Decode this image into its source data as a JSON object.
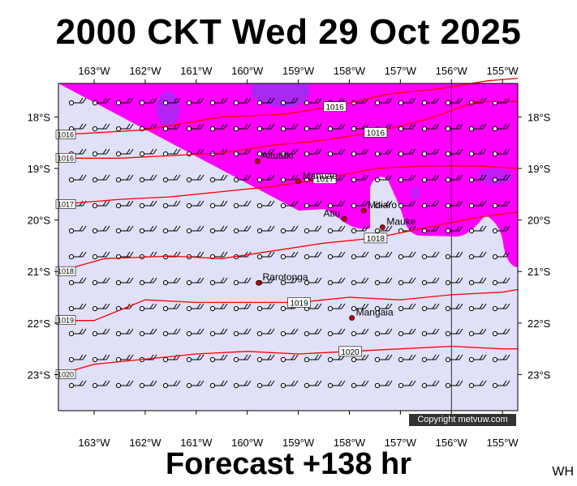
{
  "title": "2000 CKT Wed 29 Oct 2025",
  "footer": "Forecast +138 hr",
  "initials": "WH",
  "copyright": "Copyright metvuw.com",
  "map": {
    "lon_labels": [
      "163°W",
      "162°W",
      "161°W",
      "160°W",
      "159°W",
      "158°W",
      "157°W",
      "156°W",
      "155°W"
    ],
    "lon_values": [
      -163,
      -162,
      -161,
      -160,
      -159,
      -158,
      -157,
      -156,
      -155
    ],
    "lat_labels": [
      "18°S",
      "19°S",
      "20°S",
      "21°S",
      "22°S",
      "23°S"
    ],
    "lat_values": [
      -18,
      -19,
      -20,
      -21,
      -22,
      -23
    ],
    "lon_range": [
      -163.7,
      -154.7
    ],
    "lat_range": [
      -17.35,
      -23.7
    ],
    "colors": {
      "ocean_calm": "#e0e0f8",
      "wind_zone": "#ff00ff",
      "wind_zone_strong": "#9b30f0",
      "isobar": "#ff0000",
      "place_marker": "#cc0000"
    },
    "isobars": [
      {
        "label": "1016",
        "points": [
          [
            -163.7,
            -18.35
          ],
          [
            -162.0,
            -18.25
          ],
          [
            -160.5,
            -18.0
          ],
          [
            -159.3,
            -17.95
          ],
          [
            -158.3,
            -17.8
          ],
          [
            -157.2,
            -17.55
          ],
          [
            -156.2,
            -17.45
          ],
          [
            -155.3,
            -17.3
          ],
          [
            -154.7,
            -17.25
          ]
        ]
      },
      {
        "label": "1016",
        "points": [
          [
            -163.7,
            -18.8
          ],
          [
            -162.5,
            -18.8
          ],
          [
            -161.5,
            -18.75
          ],
          [
            -160.5,
            -18.7
          ],
          [
            -159.5,
            -18.55
          ],
          [
            -158.5,
            -18.45
          ],
          [
            -157.5,
            -18.3
          ],
          [
            -156.5,
            -18.05
          ],
          [
            -155.5,
            -17.7
          ],
          [
            -154.7,
            -17.7
          ]
        ]
      },
      {
        "label": "1017",
        "points": [
          [
            -163.7,
            -19.7
          ],
          [
            -162.5,
            -19.6
          ],
          [
            -161.5,
            -19.55
          ],
          [
            -160.5,
            -19.45
          ],
          [
            -159.5,
            -19.35
          ],
          [
            -158.5,
            -19.2
          ],
          [
            -157.5,
            -19.0
          ],
          [
            -156.5,
            -18.95
          ],
          [
            -155.5,
            -18.95
          ],
          [
            -154.7,
            -19.0
          ]
        ]
      },
      {
        "label": "1018",
        "points": [
          [
            -163.7,
            -21.0
          ],
          [
            -162.8,
            -20.75
          ],
          [
            -161.5,
            -20.7
          ],
          [
            -160.5,
            -20.75
          ],
          [
            -159.5,
            -20.6
          ],
          [
            -158.5,
            -20.45
          ],
          [
            -157.5,
            -20.35
          ],
          [
            -156.5,
            -20.15
          ],
          [
            -155.5,
            -19.95
          ],
          [
            -154.7,
            -19.85
          ]
        ]
      },
      {
        "label": "1019",
        "points": [
          [
            -163.7,
            -21.95
          ],
          [
            -163.0,
            -21.95
          ],
          [
            -162.0,
            -21.55
          ],
          [
            -161.0,
            -21.6
          ],
          [
            -160.0,
            -21.6
          ],
          [
            -159.0,
            -21.6
          ],
          [
            -158.0,
            -21.5
          ],
          [
            -157.0,
            -21.55
          ],
          [
            -156.0,
            -21.45
          ],
          [
            -155.0,
            -21.4
          ],
          [
            -154.7,
            -21.35
          ]
        ]
      },
      {
        "label": "1020",
        "points": [
          [
            -163.7,
            -23.0
          ],
          [
            -163.0,
            -22.8
          ],
          [
            -162.0,
            -22.7
          ],
          [
            -161.0,
            -22.6
          ],
          [
            -160.0,
            -22.55
          ],
          [
            -159.0,
            -22.6
          ],
          [
            -158.0,
            -22.55
          ],
          [
            -157.0,
            -22.5
          ],
          [
            -156.0,
            -22.45
          ],
          [
            -155.0,
            -22.5
          ],
          [
            -154.7,
            -22.5
          ]
        ]
      }
    ],
    "places": [
      {
        "name": "Aitutaki",
        "lon": -159.8,
        "lat": -18.86
      },
      {
        "name": "Manuae",
        "lon": -159.0,
        "lat": -19.25
      },
      {
        "name": "Atiu",
        "lon": -158.1,
        "lat": -19.98
      },
      {
        "name": "Mitiaro",
        "lon": -157.72,
        "lat": -19.82
      },
      {
        "name": "Mauke",
        "lon": -157.35,
        "lat": -20.14
      },
      {
        "name": "Rarotonga",
        "lon": -159.78,
        "lat": -21.22
      },
      {
        "name": "Mangaia",
        "lon": -157.95,
        "lat": -21.9
      }
    ]
  }
}
